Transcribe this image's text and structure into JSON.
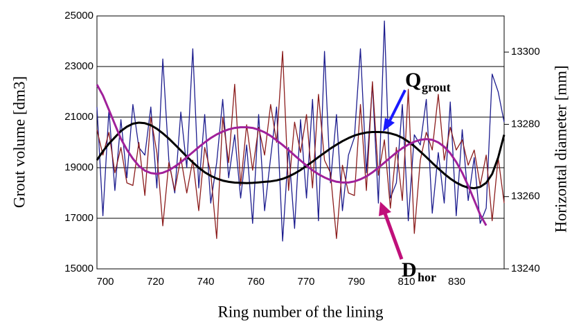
{
  "chart_data": {
    "type": "line",
    "y_label": "Grout volume [dm3]",
    "y2_label": "Horizontal diameter [mm]",
    "x_label": "Ring number of the lining",
    "xtick_labels": [
      "700",
      "720",
      "740",
      "760",
      "770",
      "790",
      "810",
      "830"
    ],
    "ylim": [
      15000,
      25000
    ],
    "yticks": [
      15000,
      17000,
      19000,
      21000,
      23000,
      25000
    ],
    "y2lim": [
      13240,
      13310
    ],
    "y2ticks": [
      13240,
      13260,
      13280,
      13300
    ],
    "grid": true,
    "annotations": [
      {
        "text": "Q",
        "sub": "grout",
        "color": "#1a1aff"
      },
      {
        "text": "D",
        "sub": "hor",
        "color": "#ff1a1a"
      }
    ],
    "series": [
      {
        "color": "#1c1c8e",
        "values": [
          21400,
          17100,
          21300,
          18100,
          20900,
          18600,
          21500,
          19800,
          19500,
          21400,
          18200,
          23300,
          19300,
          18000,
          21200,
          19000,
          23700,
          18200,
          21100,
          17600,
          19200,
          21700,
          18600,
          20300,
          17800,
          19900,
          16800,
          21100,
          17300,
          19400,
          21400,
          16100,
          19800,
          16600,
          20900,
          17800,
          21700,
          16900,
          23600,
          18400,
          21100,
          17300,
          19500,
          20200,
          23700,
          18800,
          22300,
          17600,
          24800,
          17800,
          18400,
          21500,
          16900,
          20300,
          19900,
          21700,
          17200,
          19600,
          17600,
          21600,
          17100,
          20500,
          17700,
          19400,
          16800,
          17400,
          22700,
          22000,
          20800
        ]
      },
      {
        "color": "#8b1c1c",
        "values": [
          20500,
          19500,
          20400,
          18800,
          19800,
          18400,
          18300,
          20000,
          17900,
          21000,
          19600,
          16700,
          19200,
          18100,
          19400,
          18000,
          19300,
          17300,
          19800,
          18800,
          16200,
          21000,
          19200,
          22300,
          18300,
          20700,
          18900,
          20600,
          19500,
          21500,
          20000,
          23600,
          18100,
          20800,
          19600,
          21100,
          18200,
          21900,
          19300,
          18800,
          16200,
          19100,
          18000,
          17900,
          21500,
          18100,
          22400,
          18700,
          20100,
          17400,
          19800,
          17700,
          22100,
          16400,
          19300,
          20400,
          19700,
          21900,
          19300,
          20600,
          19700,
          20100,
          19100,
          19700,
          18300,
          19500,
          16900,
          19400,
          17600
        ]
      },
      {
        "color": "#000000",
        "width": 3,
        "values": [
          19300,
          19650,
          19950,
          20200,
          20450,
          20620,
          20740,
          20780,
          20760,
          20680,
          20540,
          20360,
          20150,
          19920,
          19680,
          19440,
          19210,
          19000,
          18820,
          18680,
          18570,
          18490,
          18440,
          18410,
          18400,
          18390,
          18400,
          18420,
          18440,
          18460,
          18500,
          18560,
          18650,
          18770,
          18910,
          19070,
          19240,
          19420,
          19590,
          19760,
          19910,
          20050,
          20170,
          20270,
          20340,
          20390,
          20410,
          20410,
          20400,
          20360,
          20290,
          20180,
          20030,
          19850,
          19640,
          19420,
          19190,
          18970,
          18760,
          18570,
          18410,
          18290,
          18210,
          18190,
          18240,
          18400,
          18750,
          19400,
          20300
        ]
      },
      {
        "color": "#a0209a",
        "width": 3,
        "axis": "y2",
        "values": [
          13291,
          13288,
          13284,
          13280,
          13276,
          13273,
          13270.5,
          13268.5,
          13267.2,
          13266.5,
          13266.3,
          13266.6,
          13267.3,
          13268.3,
          13269.5,
          13270.9,
          13272.3,
          13273.7,
          13275,
          13276.2,
          13277.2,
          13278,
          13278.6,
          13279,
          13279.2,
          13279.2,
          13279,
          13278.5,
          13277.8,
          13276.8,
          13275.6,
          13274.3,
          13272.9,
          13271.4,
          13270,
          13268.6,
          13267.3,
          13266.2,
          13265.3,
          13264.6,
          13264.1,
          13263.9,
          13263.9,
          13264.2,
          13264.8,
          13265.6,
          13266.7,
          13268,
          13269.4,
          13270.8,
          13272.2,
          13273.4,
          13274.4,
          13275.2,
          13275.7,
          13275.9,
          13275.7,
          13275,
          13273.8,
          13272,
          13269.6,
          13266.6,
          13263,
          13259,
          13255,
          13252,
          null,
          null,
          null
        ]
      }
    ]
  }
}
